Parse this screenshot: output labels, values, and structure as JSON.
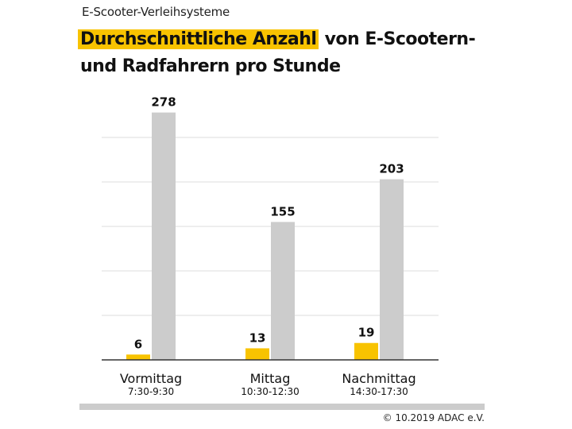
{
  "header": {
    "supertitle": "E-Scooter-Verleihsysteme",
    "title_highlight": "Durchschnittliche Anzahl",
    "title_rest": " von E-Scootern-und Radfahrern pro Stunde"
  },
  "footer": {
    "copyright": "© 10.2019 ADAC e.V."
  },
  "colors": {
    "scooter": "#f8c300",
    "bike": "#cccccc",
    "grid": "#dddddd",
    "axis": "#333333"
  },
  "chart_data": {
    "type": "bar",
    "title": "Durchschnittliche Anzahl von E-Scootern- und Radfahrern pro Stunde",
    "categories": [
      "Vormittag",
      "Mittag",
      "Nachmittag"
    ],
    "category_times": [
      "7:30-9:30",
      "10:30-12:30",
      "14:30-17:30"
    ],
    "series": [
      {
        "name": "E-Scooter",
        "values": [
          6,
          13,
          19
        ]
      },
      {
        "name": "Radfahrer",
        "values": [
          278,
          155,
          203
        ]
      }
    ],
    "ylim": [
      0,
      300
    ],
    "gridlines": [
      0,
      50,
      100,
      150,
      200,
      250
    ],
    "legend": "none"
  }
}
